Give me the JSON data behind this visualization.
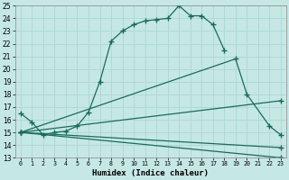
{
  "xlabel": "Humidex (Indice chaleur)",
  "xlim": [
    -0.5,
    23.5
  ],
  "ylim": [
    13,
    25
  ],
  "xticks": [
    0,
    1,
    2,
    3,
    4,
    5,
    6,
    7,
    8,
    9,
    10,
    11,
    12,
    13,
    14,
    15,
    16,
    17,
    18,
    19,
    20,
    21,
    22,
    23
  ],
  "yticks": [
    13,
    14,
    15,
    16,
    17,
    18,
    19,
    20,
    21,
    22,
    23,
    24,
    25
  ],
  "bg_color": "#c5e8e5",
  "line_color": "#1a6b5a",
  "grid_color": "#b0d8d5",
  "line1_x": [
    0,
    1,
    2,
    3,
    4,
    5,
    6,
    7,
    8,
    9,
    10,
    11,
    12,
    13,
    14,
    15,
    16,
    17,
    18
  ],
  "line1_y": [
    16.5,
    15.8,
    14.8,
    15.0,
    15.1,
    15.5,
    16.6,
    19.0,
    22.2,
    23.0,
    23.5,
    23.8,
    23.9,
    24.0,
    25.0,
    24.2,
    24.2,
    23.5,
    21.5
  ],
  "line2_x": [
    0,
    19,
    20,
    22,
    23
  ],
  "line2_y": [
    15.0,
    20.8,
    18.0,
    15.5,
    14.8
  ],
  "line3_x": [
    0,
    23
  ],
  "line3_y": [
    15.0,
    17.5
  ],
  "line4_x": [
    0,
    23
  ],
  "line4_y": [
    15.0,
    13.8
  ],
  "line5_x": [
    0,
    23
  ],
  "line5_y": [
    15.0,
    13.0
  ]
}
